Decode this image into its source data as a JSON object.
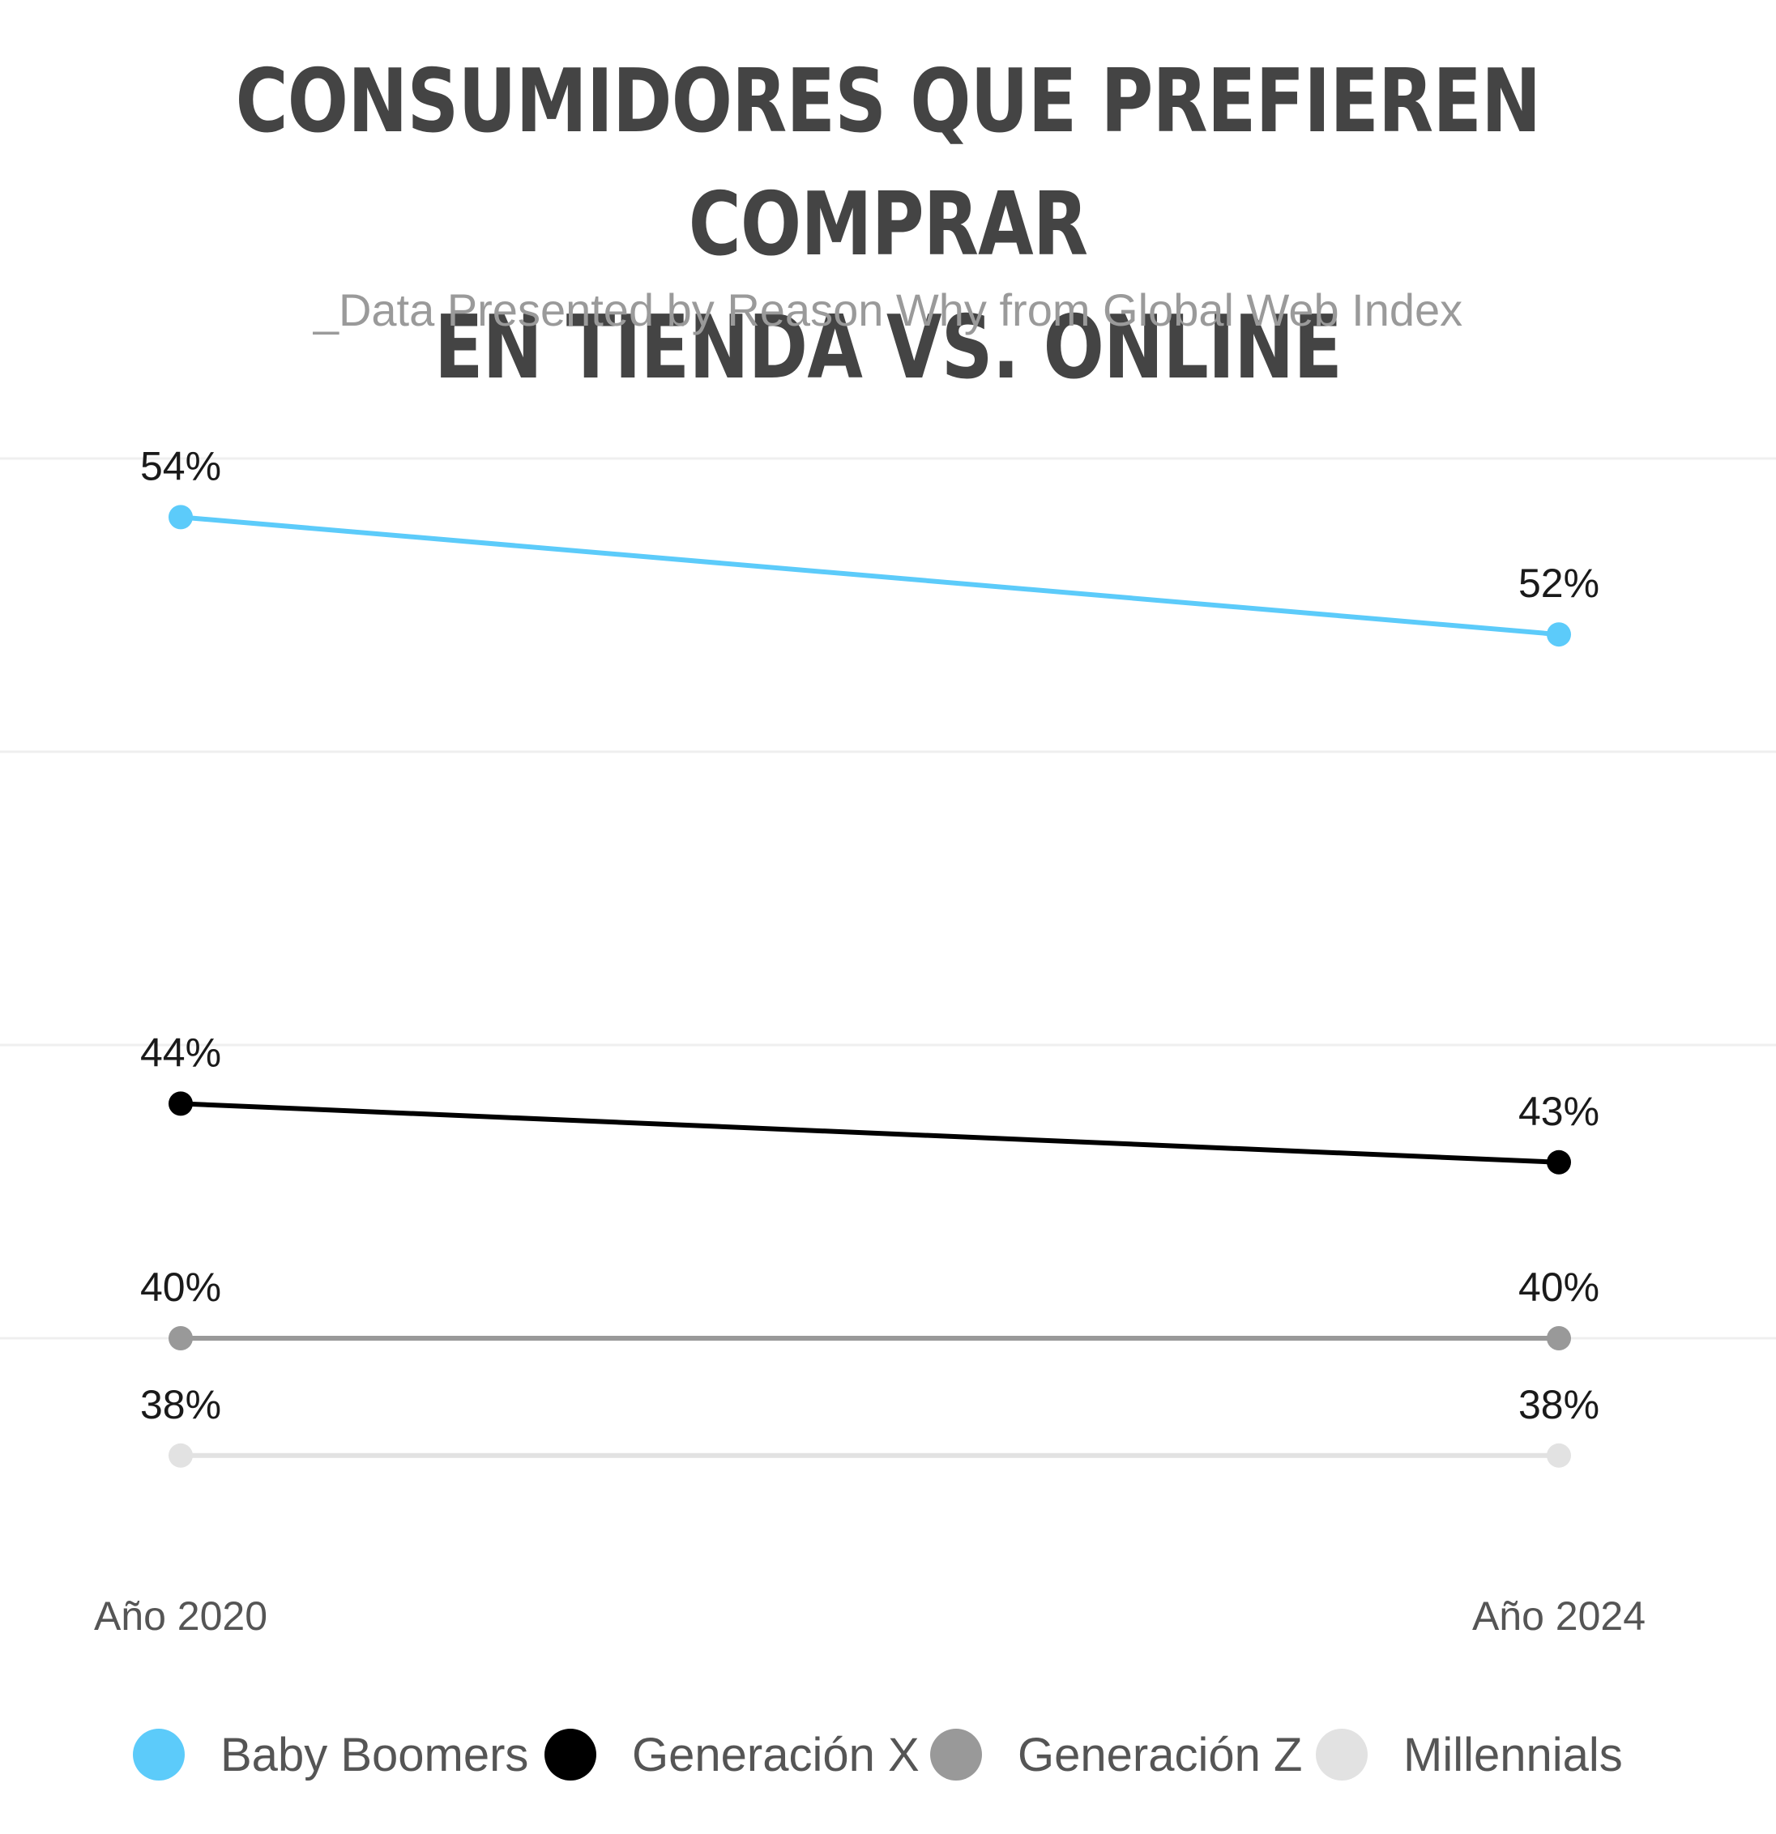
{
  "header": {
    "title_line1": "CONSUMIDORES QUE PREFIEREN COMPRAR",
    "title_line2": "EN TIENDA VS. ONLINE",
    "subtitle": "_Data Presented by Reason Why from Global Web Index"
  },
  "chart_data": {
    "type": "line",
    "title": "CONSUMIDORES QUE PREFIEREN COMPRAR EN TIENDA VS. ONLINE",
    "subtitle": "_Data Presented by Reason Why from Global Web Index",
    "categories": [
      "Año 2020",
      "Año 2024"
    ],
    "series": [
      {
        "name": "Baby Boomers",
        "values": [
          54,
          52
        ],
        "labels": [
          "54%",
          "52%"
        ],
        "color": "#5ccbfa"
      },
      {
        "name": "Generación X",
        "values": [
          44,
          43
        ],
        "labels": [
          "44%",
          "43%"
        ],
        "color": "#000000"
      },
      {
        "name": "Generación Z",
        "values": [
          40,
          40
        ],
        "labels": [
          "40%",
          "40%"
        ],
        "color": "#999999"
      },
      {
        "name": "Millennials",
        "values": [
          38,
          38
        ],
        "labels": [
          "38%",
          "38%"
        ],
        "color": "#e2e2e2"
      }
    ],
    "unit": "%",
    "gridlines": [
      40,
      45,
      50,
      55
    ],
    "grid": true,
    "legend_position": "bottom"
  }
}
